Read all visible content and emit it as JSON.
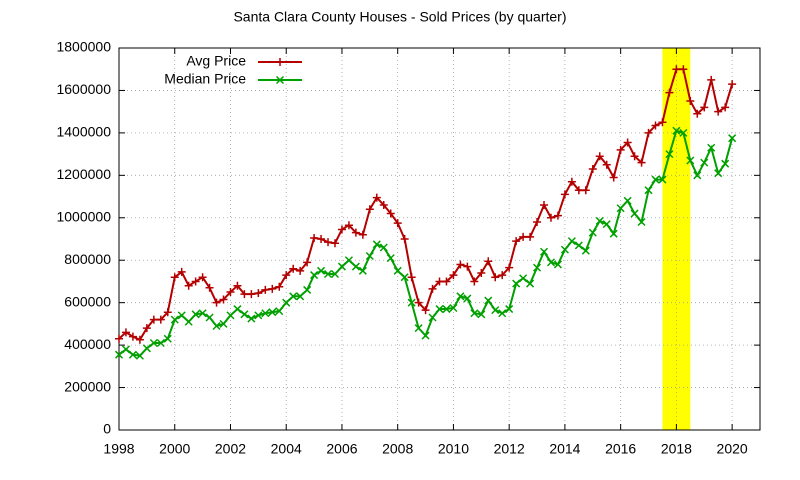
{
  "chart_data": {
    "type": "line",
    "title": "Santa Clara County Houses - Sold Prices (by quarter)",
    "x": [
      1998,
      1998.25,
      1998.5,
      1998.75,
      1999,
      1999.25,
      1999.5,
      1999.75,
      2000,
      2000.25,
      2000.5,
      2000.75,
      2001,
      2001.25,
      2001.5,
      2001.75,
      2002,
      2002.25,
      2002.5,
      2002.75,
      2003,
      2003.25,
      2003.5,
      2003.75,
      2004,
      2004.25,
      2004.5,
      2004.75,
      2005,
      2005.25,
      2005.5,
      2005.75,
      2006,
      2006.25,
      2006.5,
      2006.75,
      2007,
      2007.25,
      2007.5,
      2007.75,
      2008,
      2008.25,
      2008.5,
      2008.75,
      2009,
      2009.25,
      2009.5,
      2009.75,
      2010,
      2010.25,
      2010.5,
      2010.75,
      2011,
      2011.25,
      2011.5,
      2011.75,
      2012,
      2012.25,
      2012.5,
      2012.75,
      2013,
      2013.25,
      2013.5,
      2013.75,
      2014,
      2014.25,
      2014.5,
      2014.75,
      2015,
      2015.25,
      2015.5,
      2015.75,
      2016,
      2016.25,
      2016.5,
      2016.75,
      2017,
      2017.25,
      2017.5,
      2017.75,
      2018,
      2018.25,
      2018.5,
      2018.75,
      2019,
      2019.25,
      2019.5,
      2019.75,
      2020
    ],
    "series": [
      {
        "name": "Avg Price",
        "color": "#b40000",
        "marker": "plus",
        "values": [
          430000,
          460000,
          440000,
          425000,
          480000,
          520000,
          520000,
          555000,
          720000,
          745000,
          680000,
          700000,
          720000,
          670000,
          600000,
          615000,
          650000,
          680000,
          640000,
          640000,
          645000,
          660000,
          665000,
          675000,
          730000,
          760000,
          750000,
          790000,
          905000,
          900000,
          885000,
          880000,
          945000,
          965000,
          930000,
          920000,
          1040000,
          1095000,
          1060000,
          1020000,
          975000,
          900000,
          720000,
          600000,
          565000,
          665000,
          700000,
          700000,
          730000,
          780000,
          770000,
          700000,
          740000,
          795000,
          720000,
          730000,
          765000,
          890000,
          910000,
          910000,
          980000,
          1060000,
          1000000,
          1010000,
          1110000,
          1170000,
          1130000,
          1130000,
          1230000,
          1290000,
          1250000,
          1190000,
          1320000,
          1355000,
          1290000,
          1260000,
          1400000,
          1435000,
          1450000,
          1590000,
          1700000,
          1700000,
          1550000,
          1490000,
          1520000,
          1650000,
          1500000,
          1520000,
          1630000
        ]
      },
      {
        "name": "Median Price",
        "color": "#00a000",
        "marker": "cross",
        "values": [
          355000,
          380000,
          355000,
          350000,
          385000,
          410000,
          410000,
          430000,
          520000,
          540000,
          510000,
          545000,
          550000,
          530000,
          490000,
          500000,
          540000,
          570000,
          545000,
          525000,
          540000,
          550000,
          555000,
          560000,
          600000,
          630000,
          630000,
          660000,
          730000,
          750000,
          735000,
          735000,
          770000,
          800000,
          770000,
          750000,
          820000,
          875000,
          860000,
          810000,
          750000,
          720000,
          600000,
          480000,
          445000,
          530000,
          570000,
          570000,
          575000,
          630000,
          620000,
          550000,
          545000,
          610000,
          565000,
          550000,
          570000,
          690000,
          715000,
          690000,
          765000,
          840000,
          790000,
          780000,
          850000,
          890000,
          870000,
          845000,
          930000,
          985000,
          970000,
          925000,
          1045000,
          1080000,
          1020000,
          980000,
          1130000,
          1180000,
          1180000,
          1300000,
          1410000,
          1400000,
          1270000,
          1200000,
          1260000,
          1330000,
          1210000,
          1255000,
          1375000
        ]
      }
    ],
    "highlight": {
      "from": 2017.5,
      "to": 2018.5,
      "color": "#ffff00"
    },
    "xlim": [
      1998,
      2021
    ],
    "xticks": [
      1998,
      2000,
      2002,
      2004,
      2006,
      2008,
      2010,
      2012,
      2014,
      2016,
      2018,
      2020
    ],
    "ylim": [
      0,
      1800000
    ],
    "yticks": [
      0,
      200000,
      400000,
      600000,
      800000,
      1000000,
      1200000,
      1400000,
      1600000,
      1800000
    ],
    "grid": true,
    "legend": "top-left"
  }
}
